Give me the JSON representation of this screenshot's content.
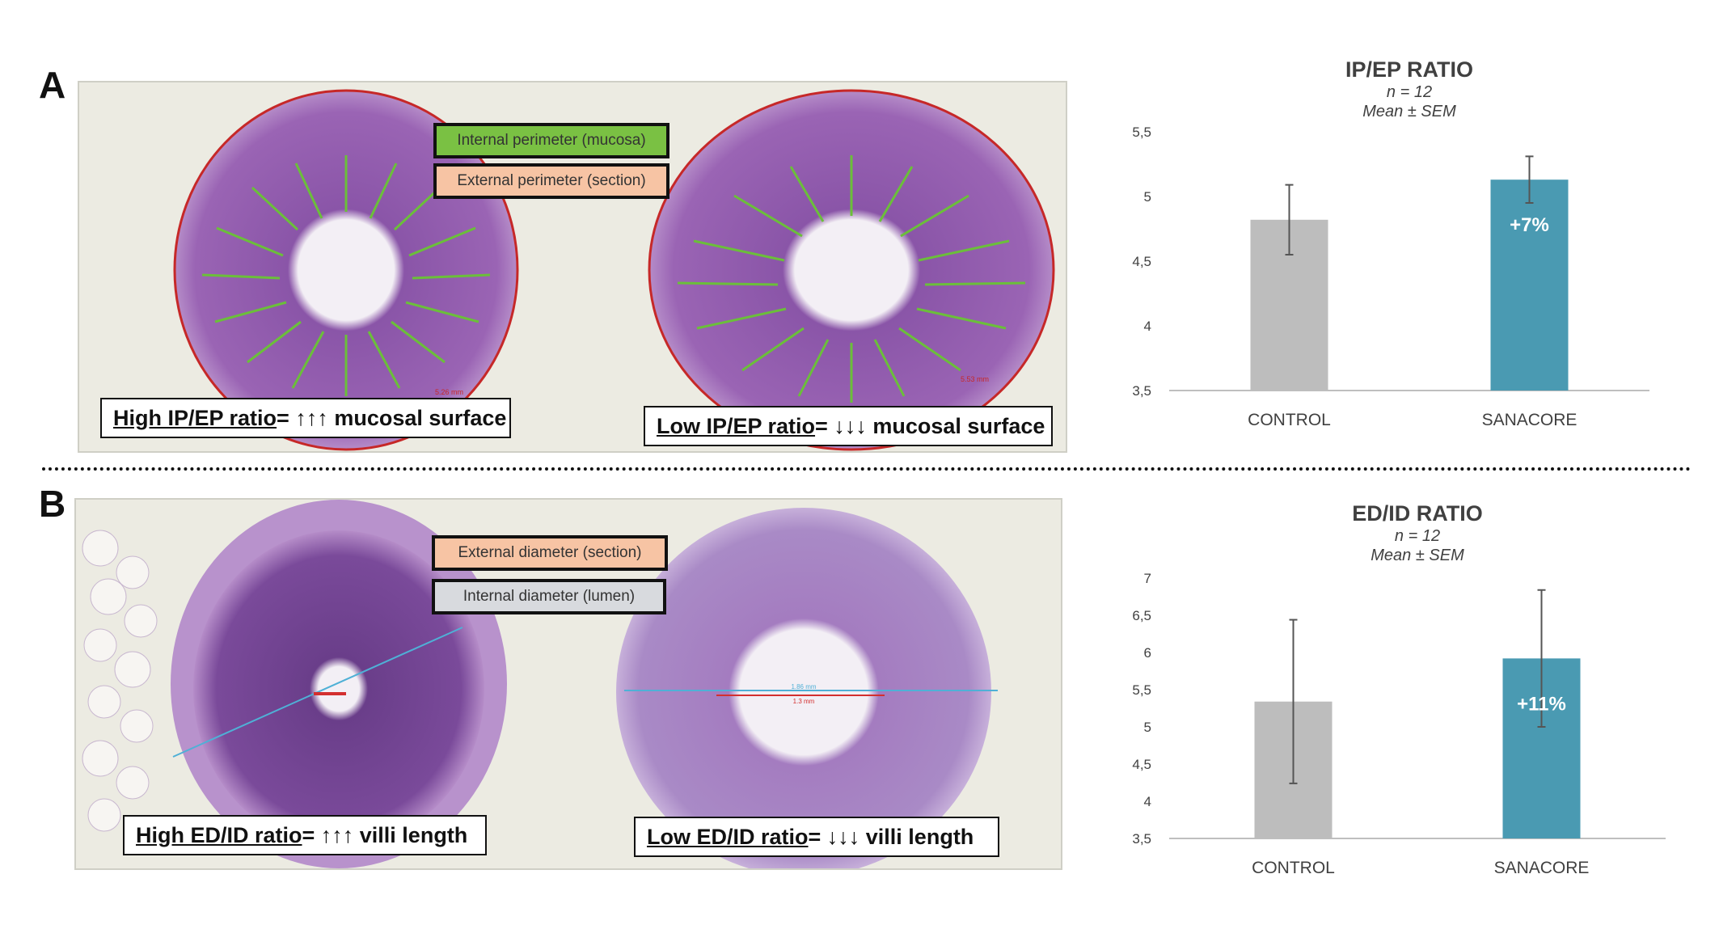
{
  "panels": {
    "a": {
      "letter": "A",
      "legend": [
        "Internal perimeter (mucosa)",
        "External perimeter (section)"
      ],
      "caption_left": {
        "underlined": "High IP/EP ratio",
        "rest": " = ↑↑↑ mucosal surface"
      },
      "caption_right": {
        "underlined": "Low IP/EP ratio",
        "rest": " = ↓↓↓ mucosal surface"
      },
      "scale_left": "5.26 mm",
      "scale_right": "5.53 mm"
    },
    "b": {
      "letter": "B",
      "legend": [
        "External diameter (section)",
        "Internal diameter (lumen)"
      ],
      "caption_left": {
        "underlined": "High ED/ID ratio ",
        "rest": "= ↑↑↑ villi length"
      },
      "caption_right": {
        "underlined": "Low ED/ID ratio ",
        "rest": "= ↓↓↓ villi length"
      },
      "scale_right_top": "1.86 mm",
      "scale_right_bottom": "1.3 mm"
    }
  },
  "colors": {
    "control": "#bdbdbd",
    "sanacore": "#4a9ab2",
    "internal_perimeter": "#7ac143",
    "external_perimeter": "#f7c4a4",
    "internal_diameter": "#d8dade",
    "tissue": "#9a64b4",
    "tissue_dark": "#6a3e8a"
  },
  "chart_data": [
    {
      "type": "bar",
      "title": "IP/EP RATIO",
      "subtitle": [
        "n = 12",
        "Mean ± SEM"
      ],
      "categories": [
        "CONTROL",
        "SANACORE"
      ],
      "values": [
        4.82,
        5.13
      ],
      "errors": [
        0.27,
        0.18
      ],
      "ylim": [
        3.5,
        5.5
      ],
      "yticks": [
        3.5,
        4,
        4.5,
        5,
        5.5
      ],
      "ytick_labels": [
        "3,5",
        "4",
        "4,5",
        "5",
        "5,5"
      ],
      "bar_labels": [
        "",
        "+7%"
      ],
      "grid": false
    },
    {
      "type": "bar",
      "title": "ED/ID RATIO",
      "subtitle": [
        "n = 12",
        "Mean ± SEM"
      ],
      "categories": [
        "CONTROL",
        "SANACORE"
      ],
      "values": [
        5.34,
        5.92
      ],
      "errors": [
        1.1,
        0.92
      ],
      "ylim": [
        3.5,
        7
      ],
      "yticks": [
        3.5,
        4,
        4.5,
        5,
        5.5,
        6,
        6.5,
        7
      ],
      "ytick_labels": [
        "3,5",
        "4",
        "4,5",
        "5",
        "5,5",
        "6",
        "6,5",
        "7"
      ],
      "bar_labels": [
        "",
        "+11%"
      ],
      "grid": false
    }
  ]
}
